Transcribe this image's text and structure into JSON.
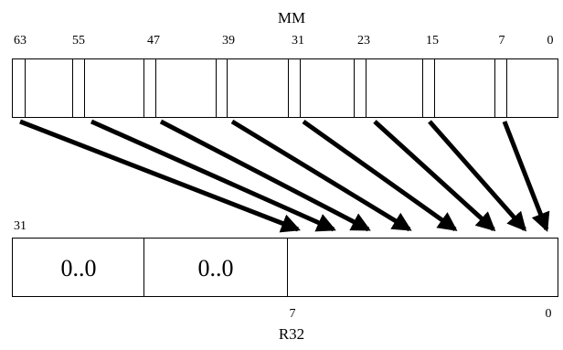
{
  "source": {
    "title": "MM",
    "bit_labels": [
      "63",
      "55",
      "47",
      "39",
      "31",
      "23",
      "15",
      "7",
      "0"
    ]
  },
  "dest": {
    "title": "R32",
    "top_bit_label": "31",
    "bottom_labels": [
      "7",
      "0"
    ],
    "cell_labels": [
      "0..0",
      "0..0"
    ]
  },
  "colors": {
    "stroke": "#000000",
    "background": "#ffffff"
  }
}
